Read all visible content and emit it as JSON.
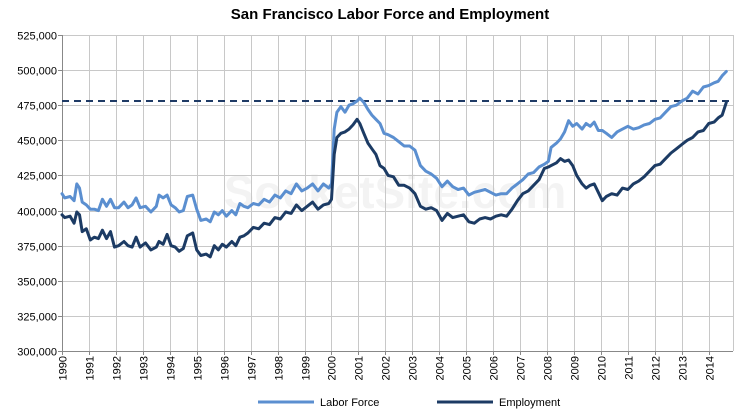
{
  "chart_data": {
    "type": "line",
    "title": "San Francisco Labor Force and Employment",
    "watermark": "SocketSite.com",
    "xlabel": "",
    "ylabel": "",
    "x_tick_labels": [
      "1990",
      "1991",
      "1992",
      "1993",
      "1994",
      "1995",
      "1996",
      "1997",
      "1998",
      "1999",
      "2000",
      "2001",
      "2002",
      "2003",
      "2004",
      "2005",
      "2006",
      "2007",
      "2008",
      "2009",
      "2010",
      "2011",
      "2012",
      "2013",
      "2014"
    ],
    "xlim": [
      1990,
      2014.9
    ],
    "ylim": [
      300000,
      525000
    ],
    "y_tick_labels": [
      "300,000",
      "325,000",
      "350,000",
      "375,000",
      "400,000",
      "425,000",
      "450,000",
      "475,000",
      "500,000",
      "525,000"
    ],
    "y_ticks": [
      300000,
      325000,
      350000,
      375000,
      400000,
      425000,
      450000,
      475000,
      500000,
      525000
    ],
    "grid": true,
    "legend_position": "bottom",
    "reference_line": {
      "value": 478000,
      "style": "dashed",
      "color": "#1f3b66"
    },
    "series": [
      {
        "name": "Labor Force",
        "color": "#5b8fd0",
        "points": [
          [
            1990.0,
            412000
          ],
          [
            1990.1,
            409000
          ],
          [
            1990.3,
            410000
          ],
          [
            1990.45,
            407000
          ],
          [
            1990.55,
            419000
          ],
          [
            1990.65,
            416000
          ],
          [
            1990.75,
            406000
          ],
          [
            1990.9,
            404000
          ],
          [
            1991.05,
            401000
          ],
          [
            1991.2,
            401000
          ],
          [
            1991.35,
            400000
          ],
          [
            1991.5,
            408000
          ],
          [
            1991.65,
            403000
          ],
          [
            1991.8,
            408000
          ],
          [
            1991.95,
            402000
          ],
          [
            1992.1,
            402000
          ],
          [
            1992.3,
            406000
          ],
          [
            1992.45,
            402000
          ],
          [
            1992.6,
            404000
          ],
          [
            1992.75,
            409000
          ],
          [
            1992.9,
            402000
          ],
          [
            1993.1,
            403000
          ],
          [
            1993.3,
            399000
          ],
          [
            1993.5,
            403000
          ],
          [
            1993.6,
            411000
          ],
          [
            1993.75,
            409000
          ],
          [
            1993.9,
            411000
          ],
          [
            1994.05,
            404000
          ],
          [
            1994.2,
            402000
          ],
          [
            1994.35,
            399000
          ],
          [
            1994.5,
            400000
          ],
          [
            1994.65,
            410000
          ],
          [
            1994.85,
            411000
          ],
          [
            1995.0,
            401000
          ],
          [
            1995.15,
            393000
          ],
          [
            1995.35,
            394000
          ],
          [
            1995.5,
            392000
          ],
          [
            1995.65,
            399000
          ],
          [
            1995.8,
            397000
          ],
          [
            1995.95,
            400000
          ],
          [
            1996.1,
            396000
          ],
          [
            1996.3,
            400000
          ],
          [
            1996.45,
            397000
          ],
          [
            1996.6,
            405000
          ],
          [
            1996.75,
            403000
          ],
          [
            1996.9,
            402000
          ],
          [
            1997.1,
            405000
          ],
          [
            1997.3,
            404000
          ],
          [
            1997.5,
            408000
          ],
          [
            1997.7,
            406000
          ],
          [
            1997.9,
            411000
          ],
          [
            1998.1,
            409000
          ],
          [
            1998.3,
            414000
          ],
          [
            1998.5,
            412000
          ],
          [
            1998.7,
            419000
          ],
          [
            1998.9,
            414000
          ],
          [
            1999.1,
            416000
          ],
          [
            1999.3,
            419000
          ],
          [
            1999.5,
            414000
          ],
          [
            1999.7,
            419000
          ],
          [
            1999.9,
            416000
          ],
          [
            2000.0,
            419000
          ],
          [
            2000.1,
            458000
          ],
          [
            2000.2,
            470000
          ],
          [
            2000.35,
            474000
          ],
          [
            2000.5,
            470000
          ],
          [
            2000.65,
            475000
          ],
          [
            2000.8,
            476000
          ],
          [
            2000.95,
            478000
          ],
          [
            2001.05,
            480000
          ],
          [
            2001.2,
            477000
          ],
          [
            2001.35,
            472000
          ],
          [
            2001.5,
            468000
          ],
          [
            2001.65,
            465000
          ],
          [
            2001.8,
            462000
          ],
          [
            2001.95,
            455000
          ],
          [
            2002.1,
            454000
          ],
          [
            2002.3,
            452000
          ],
          [
            2002.5,
            449000
          ],
          [
            2002.7,
            446000
          ],
          [
            2002.9,
            446000
          ],
          [
            2003.1,
            443000
          ],
          [
            2003.3,
            432000
          ],
          [
            2003.5,
            428000
          ],
          [
            2003.7,
            426000
          ],
          [
            2003.9,
            423000
          ],
          [
            2004.1,
            417000
          ],
          [
            2004.3,
            421000
          ],
          [
            2004.5,
            417000
          ],
          [
            2004.7,
            415000
          ],
          [
            2004.9,
            416000
          ],
          [
            2005.1,
            411000
          ],
          [
            2005.3,
            413000
          ],
          [
            2005.5,
            414000
          ],
          [
            2005.7,
            415000
          ],
          [
            2005.9,
            413000
          ],
          [
            2006.1,
            411000
          ],
          [
            2006.3,
            412000
          ],
          [
            2006.5,
            412000
          ],
          [
            2006.7,
            416000
          ],
          [
            2006.9,
            419000
          ],
          [
            2007.1,
            422000
          ],
          [
            2007.3,
            426000
          ],
          [
            2007.5,
            427000
          ],
          [
            2007.7,
            431000
          ],
          [
            2007.9,
            433000
          ],
          [
            2008.05,
            435000
          ],
          [
            2008.15,
            445000
          ],
          [
            2008.35,
            448000
          ],
          [
            2008.5,
            451000
          ],
          [
            2008.65,
            456000
          ],
          [
            2008.8,
            464000
          ],
          [
            2008.95,
            460000
          ],
          [
            2009.1,
            462000
          ],
          [
            2009.3,
            458000
          ],
          [
            2009.45,
            462000
          ],
          [
            2009.6,
            460000
          ],
          [
            2009.75,
            463000
          ],
          [
            2009.9,
            457000
          ],
          [
            2010.05,
            457000
          ],
          [
            2010.2,
            455000
          ],
          [
            2010.4,
            452000
          ],
          [
            2010.6,
            456000
          ],
          [
            2010.8,
            458000
          ],
          [
            2011.0,
            460000
          ],
          [
            2011.2,
            458000
          ],
          [
            2011.4,
            459000
          ],
          [
            2011.6,
            461000
          ],
          [
            2011.8,
            462000
          ],
          [
            2012.0,
            465000
          ],
          [
            2012.2,
            466000
          ],
          [
            2012.4,
            470000
          ],
          [
            2012.6,
            474000
          ],
          [
            2012.8,
            475000
          ],
          [
            2013.0,
            478000
          ],
          [
            2013.2,
            480000
          ],
          [
            2013.4,
            485000
          ],
          [
            2013.6,
            483000
          ],
          [
            2013.8,
            488000
          ],
          [
            2014.0,
            489000
          ],
          [
            2014.2,
            491000
          ],
          [
            2014.35,
            492000
          ],
          [
            2014.5,
            496000
          ],
          [
            2014.65,
            499000
          ]
        ]
      },
      {
        "name": "Employment",
        "color": "#1c3b64",
        "points": [
          [
            1990.0,
            397000
          ],
          [
            1990.1,
            395000
          ],
          [
            1990.3,
            396000
          ],
          [
            1990.45,
            391000
          ],
          [
            1990.55,
            399000
          ],
          [
            1990.65,
            397000
          ],
          [
            1990.75,
            385000
          ],
          [
            1990.9,
            387000
          ],
          [
            1991.05,
            379000
          ],
          [
            1991.2,
            381000
          ],
          [
            1991.35,
            380000
          ],
          [
            1991.5,
            386000
          ],
          [
            1991.65,
            380000
          ],
          [
            1991.8,
            385000
          ],
          [
            1991.95,
            374000
          ],
          [
            1992.1,
            375000
          ],
          [
            1992.3,
            378000
          ],
          [
            1992.45,
            375000
          ],
          [
            1992.6,
            374000
          ],
          [
            1992.75,
            381000
          ],
          [
            1992.9,
            374000
          ],
          [
            1993.1,
            377000
          ],
          [
            1993.3,
            372000
          ],
          [
            1993.5,
            374000
          ],
          [
            1993.6,
            378000
          ],
          [
            1993.75,
            376000
          ],
          [
            1993.9,
            383000
          ],
          [
            1994.05,
            375000
          ],
          [
            1994.2,
            374000
          ],
          [
            1994.35,
            371000
          ],
          [
            1994.5,
            373000
          ],
          [
            1994.65,
            382000
          ],
          [
            1994.85,
            384000
          ],
          [
            1995.0,
            372000
          ],
          [
            1995.15,
            368000
          ],
          [
            1995.35,
            369000
          ],
          [
            1995.5,
            367000
          ],
          [
            1995.65,
            375000
          ],
          [
            1995.8,
            372000
          ],
          [
            1995.95,
            376000
          ],
          [
            1996.1,
            374000
          ],
          [
            1996.3,
            378000
          ],
          [
            1996.45,
            375000
          ],
          [
            1996.6,
            381000
          ],
          [
            1996.75,
            382000
          ],
          [
            1996.9,
            384000
          ],
          [
            1997.1,
            388000
          ],
          [
            1997.3,
            387000
          ],
          [
            1997.5,
            391000
          ],
          [
            1997.7,
            390000
          ],
          [
            1997.9,
            395000
          ],
          [
            1998.1,
            394000
          ],
          [
            1998.3,
            399000
          ],
          [
            1998.5,
            398000
          ],
          [
            1998.7,
            404000
          ],
          [
            1998.9,
            400000
          ],
          [
            1999.1,
            403000
          ],
          [
            1999.3,
            406000
          ],
          [
            1999.5,
            401000
          ],
          [
            1999.7,
            404000
          ],
          [
            1999.9,
            405000
          ],
          [
            2000.0,
            408000
          ],
          [
            2000.1,
            440000
          ],
          [
            2000.2,
            452000
          ],
          [
            2000.35,
            455000
          ],
          [
            2000.5,
            456000
          ],
          [
            2000.65,
            458000
          ],
          [
            2000.8,
            461000
          ],
          [
            2000.95,
            465000
          ],
          [
            2001.05,
            462000
          ],
          [
            2001.2,
            455000
          ],
          [
            2001.35,
            448000
          ],
          [
            2001.5,
            444000
          ],
          [
            2001.65,
            440000
          ],
          [
            2001.8,
            432000
          ],
          [
            2001.95,
            430000
          ],
          [
            2002.1,
            425000
          ],
          [
            2002.3,
            424000
          ],
          [
            2002.5,
            418000
          ],
          [
            2002.7,
            418000
          ],
          [
            2002.9,
            416000
          ],
          [
            2003.1,
            412000
          ],
          [
            2003.3,
            403000
          ],
          [
            2003.5,
            401000
          ],
          [
            2003.7,
            402000
          ],
          [
            2003.9,
            400000
          ],
          [
            2004.1,
            393000
          ],
          [
            2004.3,
            398000
          ],
          [
            2004.5,
            395000
          ],
          [
            2004.7,
            396000
          ],
          [
            2004.9,
            397000
          ],
          [
            2005.1,
            392000
          ],
          [
            2005.3,
            391000
          ],
          [
            2005.5,
            394000
          ],
          [
            2005.7,
            395000
          ],
          [
            2005.9,
            394000
          ],
          [
            2006.1,
            396000
          ],
          [
            2006.3,
            397000
          ],
          [
            2006.5,
            396000
          ],
          [
            2006.7,
            401000
          ],
          [
            2006.9,
            407000
          ],
          [
            2007.1,
            412000
          ],
          [
            2007.3,
            414000
          ],
          [
            2007.5,
            418000
          ],
          [
            2007.7,
            422000
          ],
          [
            2007.9,
            430000
          ],
          [
            2008.05,
            431000
          ],
          [
            2008.15,
            432000
          ],
          [
            2008.35,
            434000
          ],
          [
            2008.5,
            437000
          ],
          [
            2008.65,
            435000
          ],
          [
            2008.8,
            436000
          ],
          [
            2008.95,
            432000
          ],
          [
            2009.1,
            425000
          ],
          [
            2009.3,
            419000
          ],
          [
            2009.45,
            416000
          ],
          [
            2009.6,
            418000
          ],
          [
            2009.75,
            419000
          ],
          [
            2009.9,
            413000
          ],
          [
            2010.05,
            407000
          ],
          [
            2010.2,
            410000
          ],
          [
            2010.4,
            412000
          ],
          [
            2010.6,
            411000
          ],
          [
            2010.8,
            416000
          ],
          [
            2011.0,
            415000
          ],
          [
            2011.2,
            419000
          ],
          [
            2011.4,
            421000
          ],
          [
            2011.6,
            424000
          ],
          [
            2011.8,
            428000
          ],
          [
            2012.0,
            432000
          ],
          [
            2012.2,
            433000
          ],
          [
            2012.4,
            437000
          ],
          [
            2012.6,
            441000
          ],
          [
            2012.8,
            444000
          ],
          [
            2013.0,
            447000
          ],
          [
            2013.2,
            450000
          ],
          [
            2013.4,
            452000
          ],
          [
            2013.6,
            456000
          ],
          [
            2013.8,
            457000
          ],
          [
            2014.0,
            462000
          ],
          [
            2014.2,
            463000
          ],
          [
            2014.35,
            466000
          ],
          [
            2014.5,
            468000
          ],
          [
            2014.65,
            477000
          ]
        ]
      }
    ]
  }
}
